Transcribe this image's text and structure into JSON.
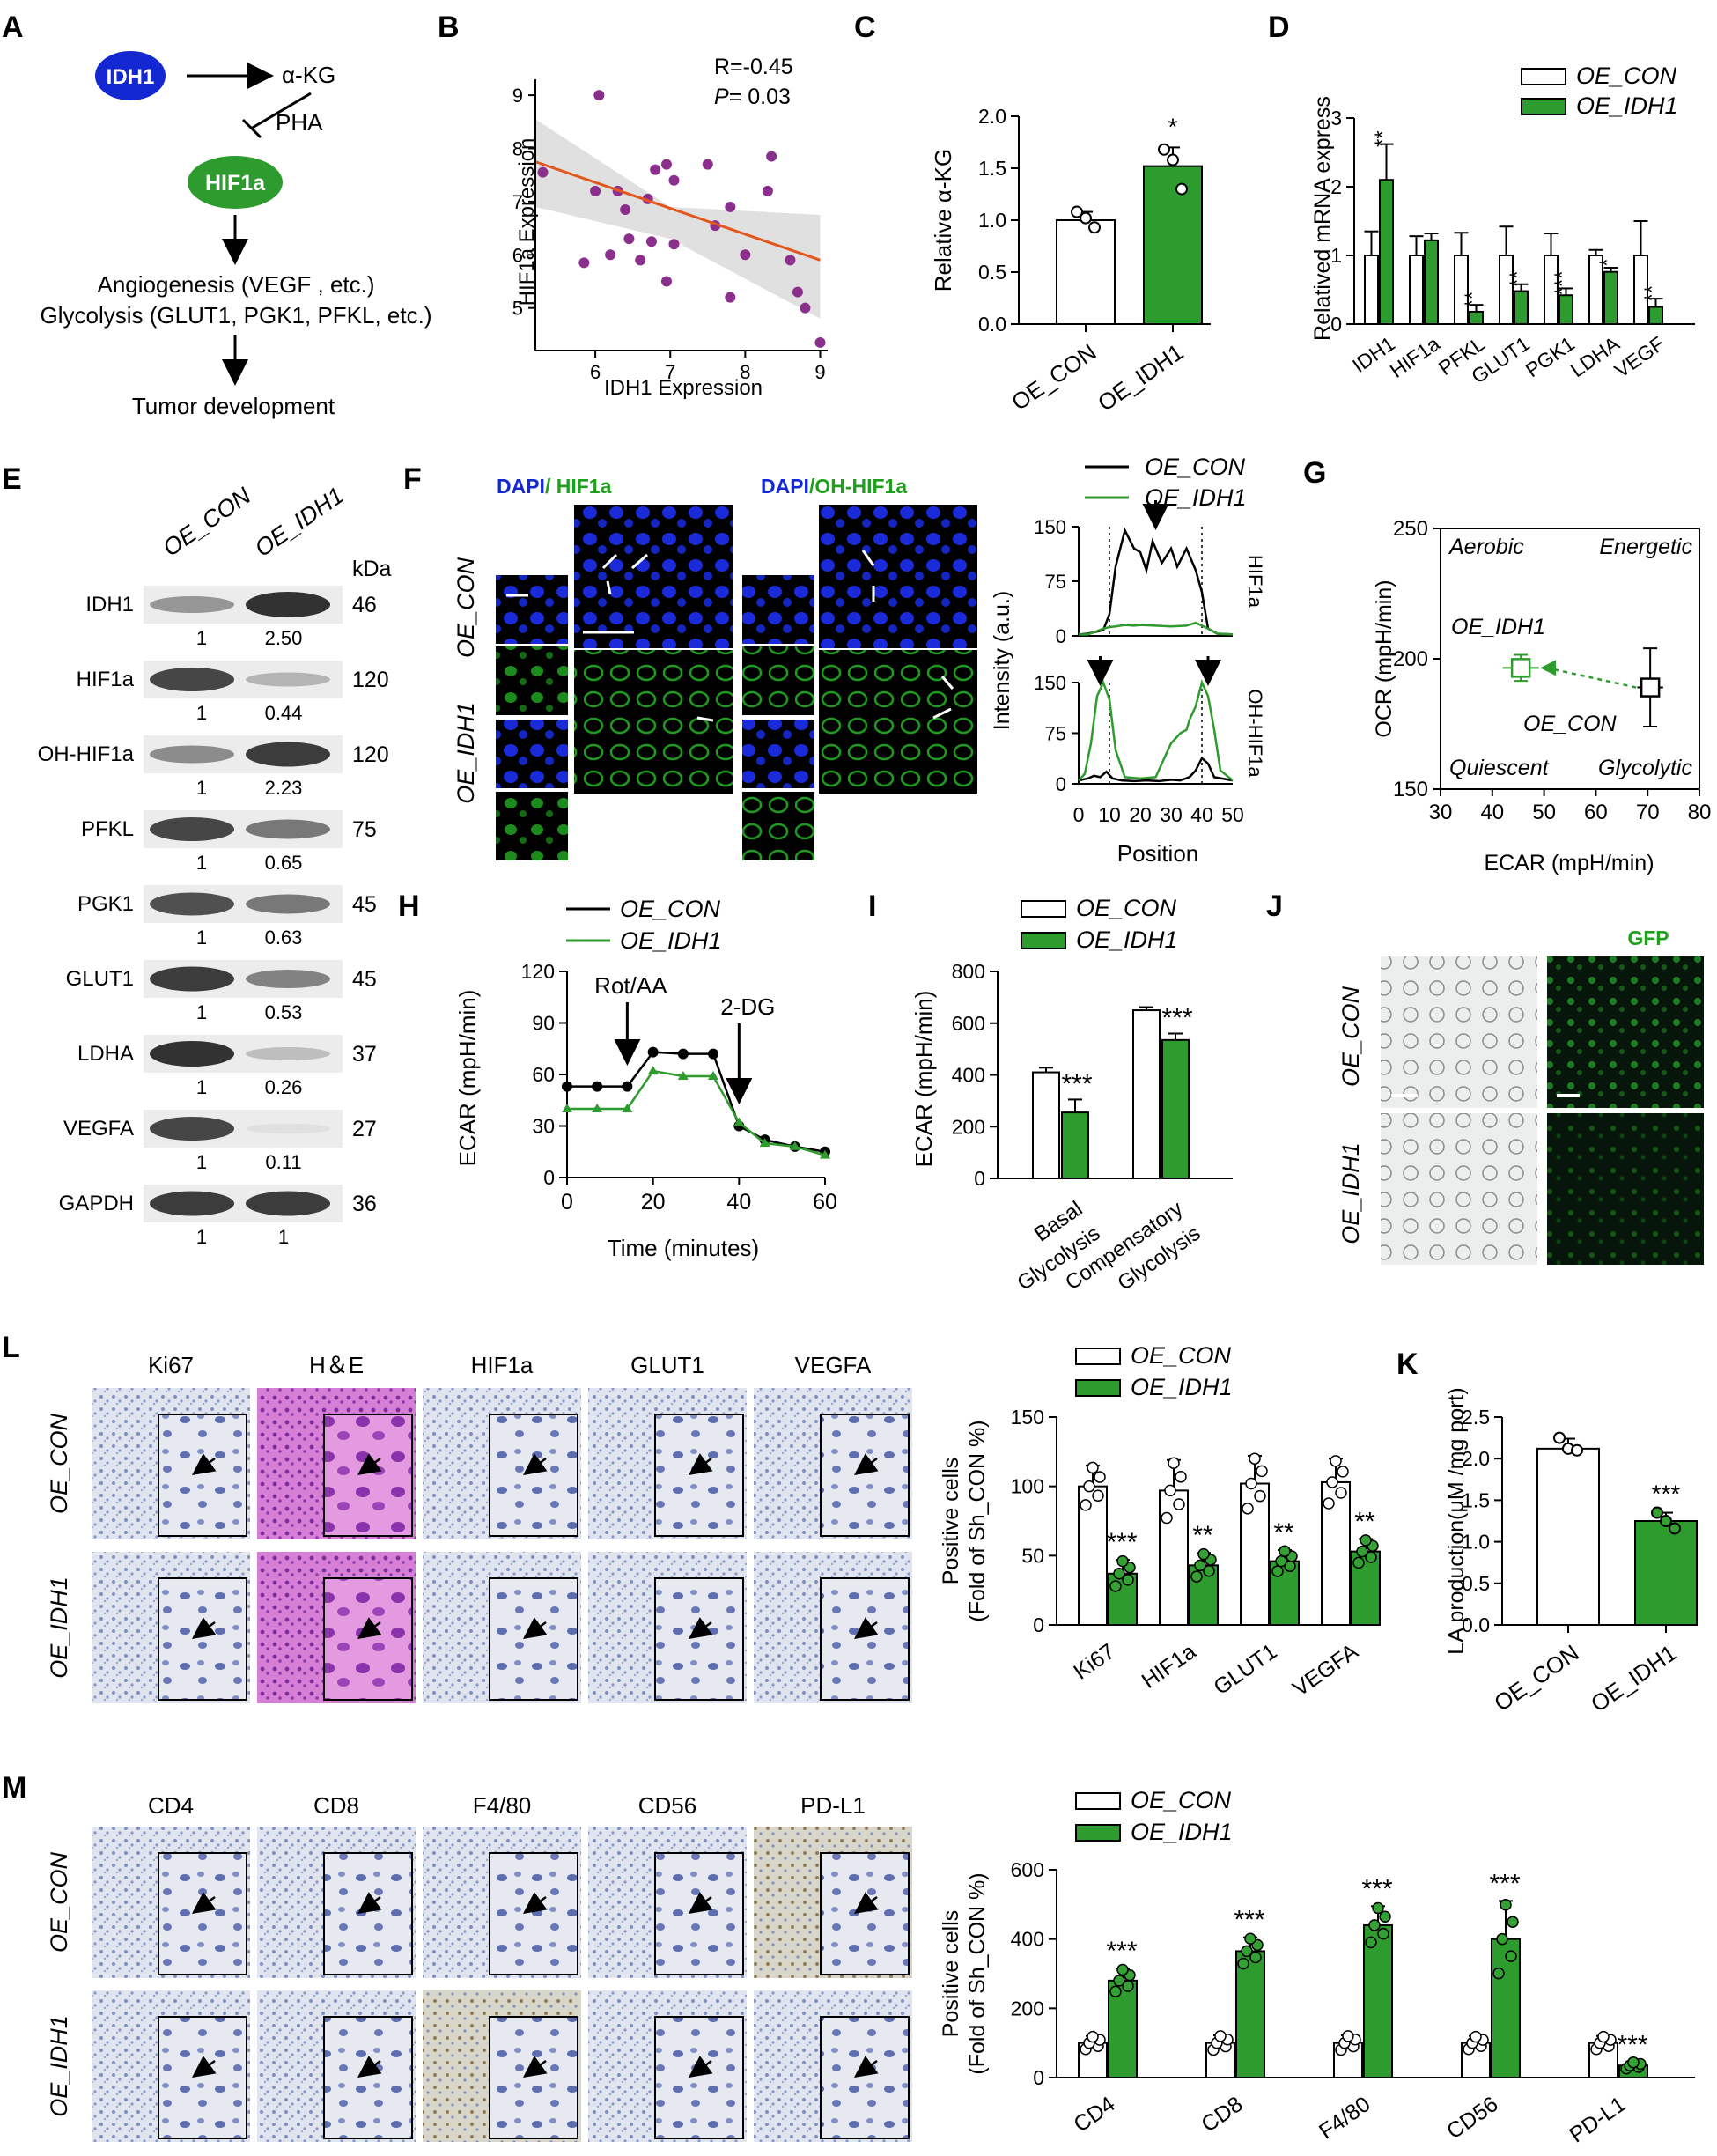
{
  "colors": {
    "con": "#ffffff",
    "idh1": "#2e9b2e",
    "dapi": "#1428d2",
    "gfp": "#1ea01e",
    "ihc_blue": "#a9b8d4",
    "he": "#d065c8",
    "black": "#000000"
  },
  "panels": {
    "A": {
      "letter": "A",
      "idh1": "IDH1",
      "akg": "α-KG",
      "pha": "PHA",
      "hif1a": "HIF1a",
      "line1": "Angiogenesis (VEGF , etc.)",
      "line2": "Glycolysis (GLUT1, PGK1, PFKL, etc.)",
      "line3": "Tumor development"
    },
    "B": {
      "letter": "B",
      "r_text": "R=-0.45",
      "p_label": "P",
      "p_value": "= 0.03"
    },
    "C": {
      "letter": "C"
    },
    "D": {
      "letter": "D"
    },
    "E": {
      "letter": "E",
      "kda": "kDa",
      "col1": "OE_CON",
      "col2": "OE_IDH1",
      "rows": [
        {
          "name": "IDH1",
          "kda": "46",
          "v1": "1",
          "v2": "2.50",
          "i1": 0.45,
          "i2": 0.95
        },
        {
          "name": "HIF1a",
          "kda": "120",
          "v1": "1",
          "v2": "0.44",
          "i1": 0.85,
          "i2": 0.3
        },
        {
          "name": "OH-HIF1a",
          "kda": "120",
          "v1": "1",
          "v2": "2.23",
          "i1": 0.5,
          "i2": 0.9
        },
        {
          "name": "PFKL",
          "kda": "75",
          "v1": "1",
          "v2": "0.65",
          "i1": 0.85,
          "i2": 0.6
        },
        {
          "name": "PGK1",
          "kda": "45",
          "v1": "1",
          "v2": "0.63",
          "i1": 0.8,
          "i2": 0.6
        },
        {
          "name": "GLUT1",
          "kda": "45",
          "v1": "1",
          "v2": "0.53",
          "i1": 0.9,
          "i2": 0.55
        },
        {
          "name": "LDHA",
          "kda": "37",
          "v1": "1",
          "v2": "0.26",
          "i1": 0.95,
          "i2": 0.25
        },
        {
          "name": "VEGFA",
          "kda": "27",
          "v1": "1",
          "v2": "0.11",
          "i1": 0.85,
          "i2": 0.08
        },
        {
          "name": "GAPDH",
          "kda": "36",
          "v1": "1",
          "v2": "1",
          "i1": 0.9,
          "i2": 0.9
        }
      ]
    },
    "F": {
      "letter": "F",
      "dapi": "DAPI",
      "hif1a_title": "/ HIF1a",
      "dapi2": "DAPI",
      "ohhif1a_title": "/OH-HIF1a",
      "row1": "OE_CON",
      "row2": "OE_IDH1",
      "ylabel": "Intensity (a.u.)",
      "xlabel": "Position",
      "legend1": "OE_CON",
      "legend2": "OE_IDH1",
      "side1": "HIF1a",
      "side2": "OH-HIF1a"
    },
    "G": {
      "letter": "G",
      "q_aerobic": "Aerobic",
      "q_energetic": "Energetic",
      "q_quiescent": "Quiescent",
      "q_glycolytic": "Glycolytic",
      "label_idh1": "OE_IDH1",
      "label_con": "OE_CON"
    },
    "H": {
      "letter": "H",
      "ann1": "Rot/AA",
      "ann2": "2-DG"
    },
    "I": {
      "letter": "I"
    },
    "J": {
      "letter": "J",
      "gfp": "GFP",
      "row1": "OE_CON",
      "row2": "OE_IDH1"
    },
    "K": {
      "letter": "K"
    },
    "L": {
      "letter": "L",
      "cols": [
        "Ki67",
        "H＆E",
        "HIF1a",
        "GLUT1",
        "VEGFA"
      ],
      "row1": "OE_CON",
      "row2": "OE_IDH1"
    },
    "M": {
      "letter": "M",
      "cols": [
        "CD4",
        "CD8",
        "F4/80",
        "CD56",
        "PD-L1"
      ],
      "row1": "OE_CON",
      "row2": "OE_IDH1"
    }
  },
  "chart_data": [
    {
      "id": "B",
      "type": "scatter",
      "xlabel": "IDH1 Expression",
      "ylabel": "HIF1a Expression",
      "xlim": [
        5.2,
        9.1
      ],
      "ylim": [
        4.2,
        9.3
      ],
      "xticks": [
        6,
        7,
        8,
        9
      ],
      "yticks": [
        5,
        6,
        7,
        8,
        9
      ],
      "points": [
        [
          5.3,
          7.55
        ],
        [
          6.05,
          9.0
        ],
        [
          6.0,
          7.2
        ],
        [
          6.3,
          7.2
        ],
        [
          6.4,
          6.85
        ],
        [
          5.85,
          5.85
        ],
        [
          6.2,
          6.0
        ],
        [
          6.45,
          6.3
        ],
        [
          6.75,
          6.25
        ],
        [
          6.6,
          5.9
        ],
        [
          6.7,
          7.05
        ],
        [
          6.8,
          7.6
        ],
        [
          6.95,
          7.7
        ],
        [
          7.05,
          7.4
        ],
        [
          7.05,
          6.2
        ],
        [
          6.95,
          5.5
        ],
        [
          7.6,
          6.55
        ],
        [
          7.5,
          7.7
        ],
        [
          7.8,
          6.9
        ],
        [
          7.8,
          5.2
        ],
        [
          8.0,
          6.0
        ],
        [
          8.3,
          7.2
        ],
        [
          8.35,
          7.85
        ],
        [
          8.6,
          5.9
        ],
        [
          8.7,
          5.3
        ],
        [
          8.8,
          5.0
        ],
        [
          9.0,
          4.35
        ]
      ],
      "fit": [
        [
          5.2,
          7.75
        ],
        [
          9.0,
          5.9
        ]
      ],
      "band": [
        [
          5.2,
          8.55,
          6.9
        ],
        [
          7.0,
          6.9,
          6.3
        ],
        [
          9.0,
          6.75,
          4.8
        ]
      ]
    },
    {
      "id": "C",
      "type": "bar",
      "ylabel": "Relative α-KG",
      "ylim": [
        0,
        2.0
      ],
      "yticks": [
        0.0,
        0.5,
        1.0,
        1.5,
        2.0
      ],
      "categories": [
        "OE_CON",
        "OE_IDH1"
      ],
      "values": [
        1.0,
        1.52
      ],
      "err": [
        0.08,
        0.18
      ],
      "points": [
        [
          1.08,
          1.02,
          0.93
        ],
        [
          1.68,
          1.58,
          1.3
        ]
      ],
      "sig": [
        "",
        "*"
      ]
    },
    {
      "id": "D",
      "type": "bar",
      "ylabel": "Relatived mRNA express",
      "ylim": [
        0,
        3
      ],
      "yticks": [
        0,
        1,
        2,
        3
      ],
      "categories": [
        "IDH1",
        "HIF1a",
        "PFKL",
        "GLUT1",
        "PGK1",
        "LDHA",
        "VEGF"
      ],
      "series": [
        {
          "name": "OE_CON",
          "values": [
            1,
            1,
            1,
            1,
            1,
            1,
            1
          ],
          "err": [
            0.35,
            0.28,
            0.33,
            0.42,
            0.32,
            0.08,
            0.5
          ]
        },
        {
          "name": "OE_IDH1",
          "values": [
            2.1,
            1.22,
            0.18,
            0.48,
            0.42,
            0.76,
            0.25
          ],
          "err": [
            0.52,
            0.1,
            0.1,
            0.1,
            0.1,
            0.06,
            0.12
          ]
        }
      ],
      "sig": [
        "**",
        "",
        "**",
        "**",
        "***",
        "*",
        "**"
      ]
    },
    {
      "id": "F",
      "type": "line",
      "ylim": [
        0,
        150
      ],
      "yticks": [
        0,
        75,
        150
      ],
      "xlim": [
        0,
        50
      ],
      "xticks": [
        0,
        10,
        20,
        30,
        40,
        50
      ],
      "panels": [
        {
          "name": "HIF1a",
          "series": [
            {
              "name": "OE_CON",
              "x": [
                0,
                3,
                5,
                8,
                10,
                12,
                15,
                18,
                20,
                22,
                24,
                27,
                30,
                32,
                35,
                38,
                40,
                42,
                45,
                50
              ],
              "y": [
                2,
                3,
                5,
                8,
                30,
                95,
                145,
                120,
                115,
                90,
                130,
                100,
                120,
                95,
                120,
                90,
                60,
                10,
                3,
                2
              ]
            },
            {
              "name": "OE_IDH1",
              "x": [
                0,
                3,
                5,
                8,
                10,
                12,
                15,
                18,
                20,
                25,
                30,
                35,
                38,
                40,
                42,
                45,
                50
              ],
              "y": [
                2,
                2,
                5,
                10,
                12,
                13,
                15,
                14,
                15,
                14,
                13,
                14,
                18,
                14,
                10,
                3,
                2
              ]
            }
          ],
          "arrows": [
            25
          ]
        },
        {
          "name": "OH-HIF1a",
          "series": [
            {
              "name": "OE_CON",
              "x": [
                0,
                3,
                5,
                7,
                9,
                11,
                14,
                18,
                22,
                26,
                30,
                33,
                36,
                38,
                40,
                42,
                44,
                50
              ],
              "y": [
                5,
                8,
                12,
                10,
                18,
                8,
                5,
                4,
                5,
                4,
                6,
                5,
                10,
                20,
                38,
                30,
                10,
                5
              ]
            },
            {
              "name": "OE_IDH1",
              "x": [
                0,
                2,
                4,
                6,
                8,
                10,
                12,
                15,
                20,
                25,
                30,
                33,
                35,
                36,
                38,
                40,
                42,
                44,
                46,
                50
              ],
              "y": [
                5,
                15,
                60,
                130,
                150,
                125,
                50,
                10,
                8,
                10,
                60,
                75,
                80,
                95,
                115,
                150,
                130,
                80,
                20,
                5
              ]
            }
          ],
          "arrows": [
            7,
            42
          ]
        }
      ]
    },
    {
      "id": "G",
      "type": "scatter",
      "xlabel": "ECAR (mpH/min)",
      "ylabel": "OCR (mpH/min)",
      "xlim": [
        30,
        80
      ],
      "ylim": [
        150,
        250
      ],
      "xticks": [
        30,
        40,
        50,
        60,
        70,
        80
      ],
      "yticks": [
        150,
        200,
        250
      ],
      "points": [
        {
          "name": "OE_IDH1",
          "x": 45.5,
          "y": 196.5,
          "xerr": 3.5,
          "yerr": 5
        },
        {
          "name": "OE_CON",
          "x": 70.5,
          "y": 189,
          "xerr": 2.5,
          "yerr": 15
        }
      ]
    },
    {
      "id": "H",
      "type": "line",
      "xlabel": "Time (minutes)",
      "ylabel": "ECAR (mpH/min)",
      "xlim": [
        0,
        60
      ],
      "ylim": [
        0,
        120
      ],
      "xticks": [
        0,
        20,
        40,
        60
      ],
      "yticks": [
        0,
        30,
        60,
        90,
        120
      ],
      "series": [
        {
          "name": "OE_CON",
          "x": [
            0,
            7,
            14,
            20,
            27,
            34,
            40,
            46,
            53,
            60
          ],
          "y": [
            53,
            53,
            53,
            73,
            72,
            72,
            30,
            22,
            18,
            15
          ]
        },
        {
          "name": "OE_IDH1",
          "x": [
            0,
            7,
            14,
            20,
            27,
            34,
            40,
            46,
            53,
            60
          ],
          "y": [
            40,
            40,
            40,
            62,
            59,
            59,
            32,
            20,
            18,
            13
          ]
        }
      ],
      "annotations": [
        {
          "text": "Rot/AA",
          "x": 14
        },
        {
          "text": "2-DG",
          "x": 40
        }
      ]
    },
    {
      "id": "I",
      "type": "bar",
      "ylabel": "ECAR (mpH/min)",
      "ylim": [
        0,
        800
      ],
      "yticks": [
        0,
        200,
        400,
        600,
        800
      ],
      "categories": [
        "Basal\nGlycolysis",
        "Compensatory\nGlycolysis"
      ],
      "series": [
        {
          "name": "OE_CON",
          "values": [
            410,
            650
          ],
          "err": [
            18,
            12
          ]
        },
        {
          "name": "OE_IDH1",
          "values": [
            255,
            535
          ],
          "err": [
            50,
            25
          ]
        }
      ],
      "sig": [
        "***",
        "***"
      ]
    },
    {
      "id": "K",
      "type": "bar",
      "ylabel": "LA production(μM /mg port)",
      "ylim": [
        0,
        2.5
      ],
      "yticks": [
        0.0,
        0.5,
        1.0,
        1.5,
        2.0,
        2.5
      ],
      "categories": [
        "OE_CON",
        "OE_IDH1"
      ],
      "values": [
        2.12,
        1.25
      ],
      "err": [
        0.12,
        0.1
      ],
      "points": [
        [
          2.25,
          2.12,
          2.1
        ],
        [
          1.35,
          1.25,
          1.16
        ]
      ],
      "sig": [
        "",
        "***"
      ]
    },
    {
      "id": "L",
      "type": "bar",
      "ylabel": "Positive cells\n(Fold of Sh_CON %)",
      "ylim": [
        0,
        150
      ],
      "yticks": [
        0,
        50,
        100,
        150
      ],
      "categories": [
        "Ki67",
        "HIF1a",
        "GLUT1",
        "VEGFA"
      ],
      "series": [
        {
          "name": "OE_CON",
          "values": [
            100,
            97,
            102,
            103
          ],
          "err": [
            15,
            22,
            20,
            17
          ]
        },
        {
          "name": "OE_IDH1",
          "values": [
            37,
            43,
            46,
            53
          ],
          "err": [
            10,
            9,
            8,
            9
          ]
        }
      ],
      "sig": [
        "***",
        "**",
        "**",
        "**"
      ]
    },
    {
      "id": "M",
      "type": "bar",
      "ylabel": "Positive cells\n(Fold of Sh_CON %)",
      "ylim": [
        0,
        600
      ],
      "yticks": [
        0,
        200,
        400,
        600
      ],
      "categories": [
        "CD4",
        "CD8",
        "F4/80",
        "CD56",
        "PD-L1"
      ],
      "series": [
        {
          "name": "OE_CON",
          "values": [
            100,
            100,
            100,
            100,
            100
          ],
          "err": [
            20,
            22,
            22,
            20,
            20
          ]
        },
        {
          "name": "OE_IDH1",
          "values": [
            280,
            365,
            440,
            400,
            35
          ],
          "err": [
            35,
            40,
            55,
            110,
            10
          ]
        }
      ],
      "sig": [
        "***",
        "***",
        "***",
        "***",
        "***"
      ]
    }
  ]
}
